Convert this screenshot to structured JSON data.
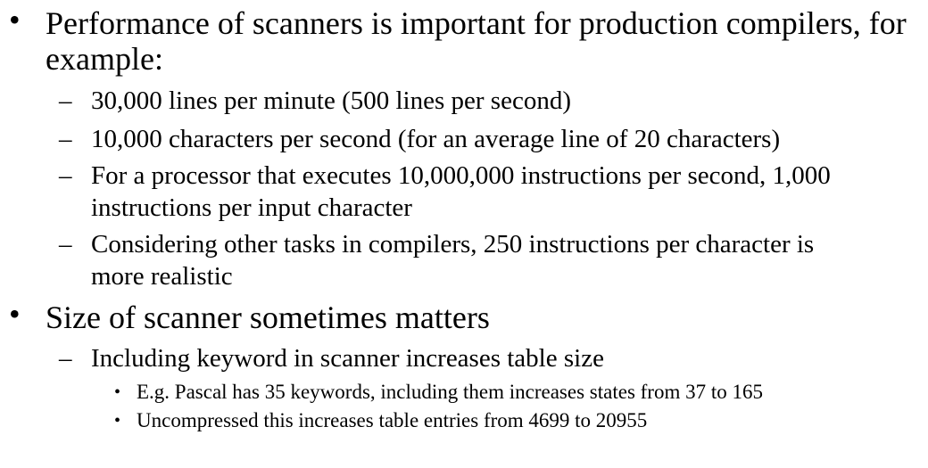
{
  "bullets": [
    {
      "text": "Performance of scanners is important for production compilers, for example:",
      "sub": [
        {
          "text": "30,000 lines per minute (500 lines per second)"
        },
        {
          "text": "10,000 characters per second (for an average line of 20 characters)"
        },
        {
          "text": "For a processor that executes 10,000,000 instructions per second, 1,000 instructions per input character"
        },
        {
          "text": "Considering other tasks in compilers, 250 instructions per character is more realistic"
        }
      ]
    },
    {
      "text": "Size of scanner sometimes matters",
      "sub": [
        {
          "text": "Including keyword in scanner increases table size",
          "sub": [
            {
              "text": "E.g. Pascal has 35 keywords, including them increases states from 37 to 165"
            },
            {
              "text": "Uncompressed this increases table entries from 4699 to 20955"
            }
          ]
        }
      ]
    }
  ],
  "markers": {
    "level1": "•",
    "level2": "–",
    "level3": "•"
  }
}
